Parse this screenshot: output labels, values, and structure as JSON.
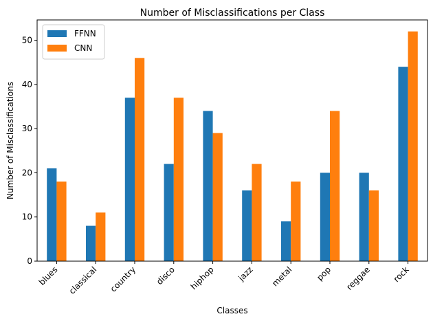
{
  "chart_data": {
    "type": "bar",
    "title": "Number of Misclassifications per Class",
    "xlabel": "Classes",
    "ylabel": "Number of Misclassifications",
    "categories": [
      "blues",
      "classical",
      "country",
      "disco",
      "hiphop",
      "jazz",
      "metal",
      "pop",
      "reggae",
      "rock"
    ],
    "series": [
      {
        "name": "FFNN",
        "color": "#1f77b4",
        "values": [
          21,
          8,
          37,
          22,
          34,
          16,
          9,
          20,
          20,
          44
        ]
      },
      {
        "name": "CNN",
        "color": "#ff7f0e",
        "values": [
          18,
          11,
          46,
          37,
          29,
          22,
          18,
          34,
          16,
          52
        ]
      }
    ],
    "ylim": [
      0,
      54.6
    ],
    "yticks": [
      0,
      10,
      20,
      30,
      40,
      50
    ],
    "grid": false,
    "legend_position": "top-left",
    "tick_label_rotation": 45
  }
}
